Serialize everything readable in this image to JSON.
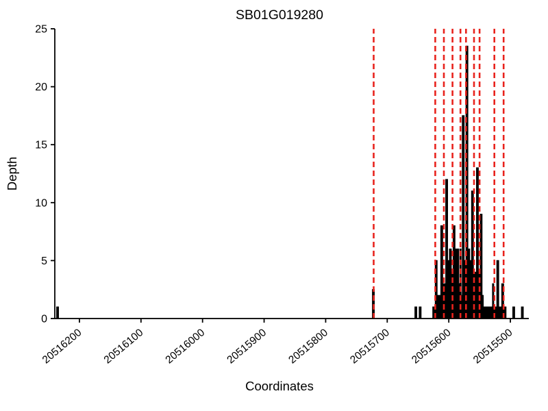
{
  "chart_data": {
    "type": "area",
    "title": "SB01G019280",
    "xlabel": "Coordinates",
    "ylabel": "Depth",
    "x_axis_reversed": true,
    "grid": false,
    "xlim": [
      20516240,
      20515470
    ],
    "ylim": [
      0,
      25
    ],
    "x_ticks": [
      20516200,
      20516100,
      20516000,
      20515900,
      20515800,
      20515700,
      20515600,
      20515500
    ],
    "y_ticks": [
      0,
      5,
      10,
      15,
      20,
      25
    ],
    "series_color": "#000000",
    "marker_color": "#e8231d",
    "marker_line_style": "dashed",
    "marker_lines": [
      20515722,
      20515622,
      20515608,
      20515594,
      20515581,
      20515572,
      20515559,
      20515550,
      20515526,
      20515511
    ],
    "depth_steps": [
      [
        20516240,
        0
      ],
      [
        20516237,
        1
      ],
      [
        20516234,
        0
      ],
      [
        20515726,
        0
      ],
      [
        20515724,
        2.5
      ],
      [
        20515721,
        0
      ],
      [
        20515657,
        0
      ],
      [
        20515655,
        1
      ],
      [
        20515652,
        0
      ],
      [
        20515648,
        1
      ],
      [
        20515645,
        0
      ],
      [
        20515628,
        0
      ],
      [
        20515626,
        1
      ],
      [
        20515622,
        5
      ],
      [
        20515619,
        2
      ],
      [
        20515613,
        8
      ],
      [
        20515610,
        3
      ],
      [
        20515605,
        12
      ],
      [
        20515602,
        5
      ],
      [
        20515599,
        6
      ],
      [
        20515596,
        4
      ],
      [
        20515593,
        8
      ],
      [
        20515590,
        6
      ],
      [
        20515584,
        3
      ],
      [
        20515582,
        6
      ],
      [
        20515580,
        2
      ],
      [
        20515578,
        17.5
      ],
      [
        20515575,
        5
      ],
      [
        20515572,
        23.5
      ],
      [
        20515569,
        6
      ],
      [
        20515566,
        5
      ],
      [
        20515563,
        11
      ],
      [
        20515560,
        4
      ],
      [
        20515555,
        13
      ],
      [
        20515552,
        4
      ],
      [
        20515549,
        9
      ],
      [
        20515546,
        2
      ],
      [
        20515544,
        1
      ],
      [
        20515529,
        3
      ],
      [
        20515527,
        1
      ],
      [
        20515522,
        5
      ],
      [
        20515519,
        1
      ],
      [
        20515514,
        3
      ],
      [
        20515511,
        1
      ],
      [
        20515507,
        0
      ],
      [
        20515496,
        1
      ],
      [
        20515493,
        0
      ],
      [
        20515482,
        1
      ],
      [
        20515479,
        0
      ],
      [
        20515470,
        0
      ]
    ]
  }
}
